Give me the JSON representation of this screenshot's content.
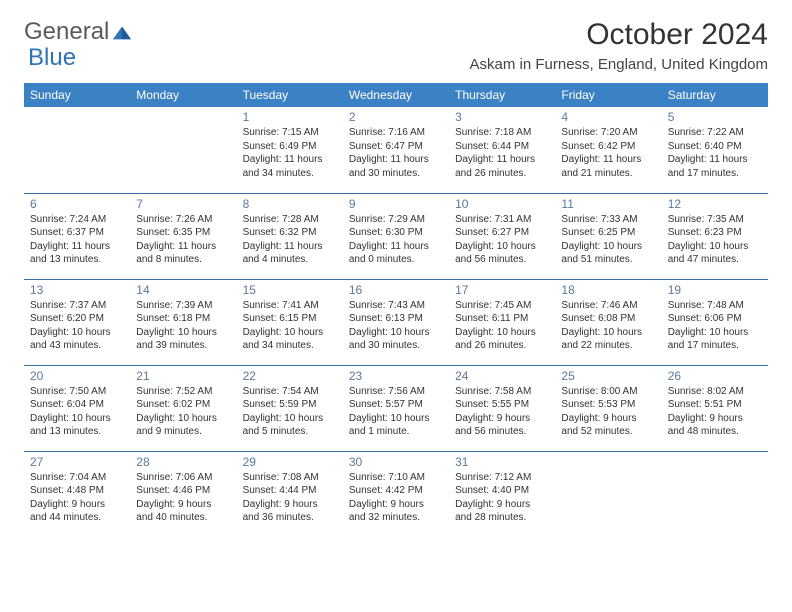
{
  "brand": {
    "part1": "General",
    "part2": "Blue",
    "logo_color": "#2f72b5"
  },
  "title": "October 2024",
  "location": "Askam in Furness, England, United Kingdom",
  "colors": {
    "header_bg": "#3b82c4",
    "header_text": "#ffffff",
    "daynum": "#5b7a99",
    "row_divider": "#3b6ea0",
    "body_text": "#333333"
  },
  "day_headers": [
    "Sunday",
    "Monday",
    "Tuesday",
    "Wednesday",
    "Thursday",
    "Friday",
    "Saturday"
  ],
  "weeks": [
    [
      null,
      null,
      {
        "n": "1",
        "sr": "Sunrise: 7:15 AM",
        "ss": "Sunset: 6:49 PM",
        "dl": "Daylight: 11 hours and 34 minutes."
      },
      {
        "n": "2",
        "sr": "Sunrise: 7:16 AM",
        "ss": "Sunset: 6:47 PM",
        "dl": "Daylight: 11 hours and 30 minutes."
      },
      {
        "n": "3",
        "sr": "Sunrise: 7:18 AM",
        "ss": "Sunset: 6:44 PM",
        "dl": "Daylight: 11 hours and 26 minutes."
      },
      {
        "n": "4",
        "sr": "Sunrise: 7:20 AM",
        "ss": "Sunset: 6:42 PM",
        "dl": "Daylight: 11 hours and 21 minutes."
      },
      {
        "n": "5",
        "sr": "Sunrise: 7:22 AM",
        "ss": "Sunset: 6:40 PM",
        "dl": "Daylight: 11 hours and 17 minutes."
      }
    ],
    [
      {
        "n": "6",
        "sr": "Sunrise: 7:24 AM",
        "ss": "Sunset: 6:37 PM",
        "dl": "Daylight: 11 hours and 13 minutes."
      },
      {
        "n": "7",
        "sr": "Sunrise: 7:26 AM",
        "ss": "Sunset: 6:35 PM",
        "dl": "Daylight: 11 hours and 8 minutes."
      },
      {
        "n": "8",
        "sr": "Sunrise: 7:28 AM",
        "ss": "Sunset: 6:32 PM",
        "dl": "Daylight: 11 hours and 4 minutes."
      },
      {
        "n": "9",
        "sr": "Sunrise: 7:29 AM",
        "ss": "Sunset: 6:30 PM",
        "dl": "Daylight: 11 hours and 0 minutes."
      },
      {
        "n": "10",
        "sr": "Sunrise: 7:31 AM",
        "ss": "Sunset: 6:27 PM",
        "dl": "Daylight: 10 hours and 56 minutes."
      },
      {
        "n": "11",
        "sr": "Sunrise: 7:33 AM",
        "ss": "Sunset: 6:25 PM",
        "dl": "Daylight: 10 hours and 51 minutes."
      },
      {
        "n": "12",
        "sr": "Sunrise: 7:35 AM",
        "ss": "Sunset: 6:23 PM",
        "dl": "Daylight: 10 hours and 47 minutes."
      }
    ],
    [
      {
        "n": "13",
        "sr": "Sunrise: 7:37 AM",
        "ss": "Sunset: 6:20 PM",
        "dl": "Daylight: 10 hours and 43 minutes."
      },
      {
        "n": "14",
        "sr": "Sunrise: 7:39 AM",
        "ss": "Sunset: 6:18 PM",
        "dl": "Daylight: 10 hours and 39 minutes."
      },
      {
        "n": "15",
        "sr": "Sunrise: 7:41 AM",
        "ss": "Sunset: 6:15 PM",
        "dl": "Daylight: 10 hours and 34 minutes."
      },
      {
        "n": "16",
        "sr": "Sunrise: 7:43 AM",
        "ss": "Sunset: 6:13 PM",
        "dl": "Daylight: 10 hours and 30 minutes."
      },
      {
        "n": "17",
        "sr": "Sunrise: 7:45 AM",
        "ss": "Sunset: 6:11 PM",
        "dl": "Daylight: 10 hours and 26 minutes."
      },
      {
        "n": "18",
        "sr": "Sunrise: 7:46 AM",
        "ss": "Sunset: 6:08 PM",
        "dl": "Daylight: 10 hours and 22 minutes."
      },
      {
        "n": "19",
        "sr": "Sunrise: 7:48 AM",
        "ss": "Sunset: 6:06 PM",
        "dl": "Daylight: 10 hours and 17 minutes."
      }
    ],
    [
      {
        "n": "20",
        "sr": "Sunrise: 7:50 AM",
        "ss": "Sunset: 6:04 PM",
        "dl": "Daylight: 10 hours and 13 minutes."
      },
      {
        "n": "21",
        "sr": "Sunrise: 7:52 AM",
        "ss": "Sunset: 6:02 PM",
        "dl": "Daylight: 10 hours and 9 minutes."
      },
      {
        "n": "22",
        "sr": "Sunrise: 7:54 AM",
        "ss": "Sunset: 5:59 PM",
        "dl": "Daylight: 10 hours and 5 minutes."
      },
      {
        "n": "23",
        "sr": "Sunrise: 7:56 AM",
        "ss": "Sunset: 5:57 PM",
        "dl": "Daylight: 10 hours and 1 minute."
      },
      {
        "n": "24",
        "sr": "Sunrise: 7:58 AM",
        "ss": "Sunset: 5:55 PM",
        "dl": "Daylight: 9 hours and 56 minutes."
      },
      {
        "n": "25",
        "sr": "Sunrise: 8:00 AM",
        "ss": "Sunset: 5:53 PM",
        "dl": "Daylight: 9 hours and 52 minutes."
      },
      {
        "n": "26",
        "sr": "Sunrise: 8:02 AM",
        "ss": "Sunset: 5:51 PM",
        "dl": "Daylight: 9 hours and 48 minutes."
      }
    ],
    [
      {
        "n": "27",
        "sr": "Sunrise: 7:04 AM",
        "ss": "Sunset: 4:48 PM",
        "dl": "Daylight: 9 hours and 44 minutes."
      },
      {
        "n": "28",
        "sr": "Sunrise: 7:06 AM",
        "ss": "Sunset: 4:46 PM",
        "dl": "Daylight: 9 hours and 40 minutes."
      },
      {
        "n": "29",
        "sr": "Sunrise: 7:08 AM",
        "ss": "Sunset: 4:44 PM",
        "dl": "Daylight: 9 hours and 36 minutes."
      },
      {
        "n": "30",
        "sr": "Sunrise: 7:10 AM",
        "ss": "Sunset: 4:42 PM",
        "dl": "Daylight: 9 hours and 32 minutes."
      },
      {
        "n": "31",
        "sr": "Sunrise: 7:12 AM",
        "ss": "Sunset: 4:40 PM",
        "dl": "Daylight: 9 hours and 28 minutes."
      },
      null,
      null
    ]
  ]
}
